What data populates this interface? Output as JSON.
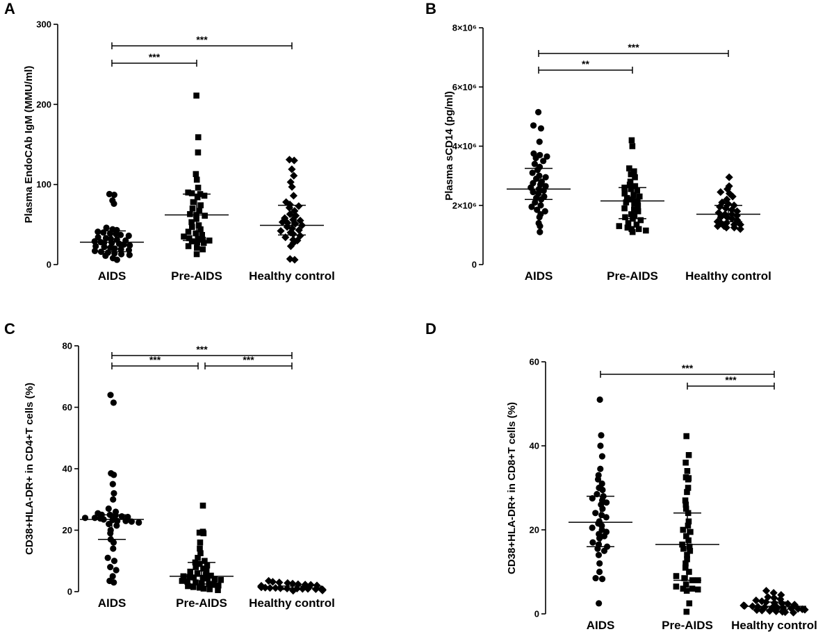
{
  "chart_data": [
    {
      "panel": "A",
      "type": "scatter",
      "ylabel": "Plasma EndoCAb IgM (MMU/ml)",
      "ylim": [
        0,
        300
      ],
      "yticks": [
        {
          "value": 0,
          "label": "0"
        },
        {
          "value": 100,
          "label": "100"
        },
        {
          "value": 200,
          "label": "200"
        },
        {
          "value": 300,
          "label": "300"
        }
      ],
      "categories": [
        "AIDS",
        "Pre-AIDS",
        "Healthy control"
      ],
      "series": [
        {
          "name": "AIDS",
          "marker": "circle",
          "median": 28,
          "iqr": [
            16,
            42
          ],
          "values": [
            88,
            87,
            80,
            76,
            46,
            44,
            43,
            41,
            40,
            39,
            38,
            37,
            36,
            34,
            33,
            32,
            31,
            30,
            29,
            28,
            27,
            27,
            26,
            25,
            24,
            23,
            22,
            21,
            20,
            19,
            18,
            17,
            16,
            15,
            14,
            13,
            12,
            11,
            8,
            6
          ]
        },
        {
          "name": "Pre-AIDS",
          "marker": "square",
          "median": 62,
          "iqr": [
            30,
            88
          ],
          "values": [
            211,
            159,
            140,
            113,
            106,
            96,
            90,
            89,
            88,
            86,
            84,
            78,
            74,
            70,
            67,
            63,
            62,
            61,
            57,
            53,
            49,
            47,
            44,
            41,
            39,
            37,
            35,
            33,
            32,
            31,
            30,
            29,
            28,
            27,
            23,
            21,
            19,
            13
          ]
        },
        {
          "name": "Healthy control",
          "marker": "diamond",
          "median": 49,
          "iqr": [
            37,
            74
          ],
          "values": [
            131,
            130,
            119,
            111,
            103,
            97,
            86,
            78,
            75,
            73,
            71,
            67,
            63,
            61,
            58,
            56,
            55,
            53,
            52,
            51,
            49,
            47,
            45,
            43,
            42,
            40,
            38,
            36,
            34,
            31,
            30,
            27,
            23,
            7,
            6
          ]
        }
      ],
      "comparisons": [
        {
          "from": 0,
          "to": 1,
          "label": "***"
        },
        {
          "from": 0,
          "to": 2,
          "label": "***"
        }
      ]
    },
    {
      "panel": "B",
      "type": "scatter",
      "ylabel": "Plasma sCD14 (pg/ml)",
      "ylim": [
        0,
        8000000
      ],
      "yticks": [
        {
          "value": 0,
          "label": "0"
        },
        {
          "value": 2000000,
          "label": "2×10⁶"
        },
        {
          "value": 4000000,
          "label": "4×10⁶"
        },
        {
          "value": 6000000,
          "label": "6×10⁶"
        },
        {
          "value": 8000000,
          "label": "8×10⁶"
        }
      ],
      "categories": [
        "AIDS",
        "Pre-AIDS",
        "Healthy control"
      ],
      "series": [
        {
          "name": "AIDS",
          "marker": "circle",
          "median": 2550000,
          "iqr": [
            2200000,
            3250000
          ],
          "values": [
            5150000,
            4700000,
            4600000,
            4150000,
            3750000,
            3700000,
            3650000,
            3600000,
            3500000,
            3400000,
            3300000,
            3200000,
            3100000,
            3000000,
            2950000,
            2900000,
            2800000,
            2750000,
            2700000,
            2650000,
            2600000,
            2550000,
            2500000,
            2450000,
            2400000,
            2300000,
            2250000,
            2200000,
            2100000,
            2000000,
            1950000,
            1850000,
            1800000,
            1700000,
            1600000,
            1400000,
            1300000,
            1100000
          ]
        },
        {
          "name": "Pre-AIDS",
          "marker": "square",
          "median": 2150000,
          "iqr": [
            1550000,
            2600000
          ],
          "values": [
            4200000,
            4000000,
            3250000,
            3150000,
            3050000,
            2950000,
            2800000,
            2700000,
            2650000,
            2600000,
            2550000,
            2500000,
            2400000,
            2350000,
            2300000,
            2250000,
            2200000,
            2150000,
            2100000,
            2050000,
            2000000,
            1900000,
            1850000,
            1800000,
            1700000,
            1650000,
            1600000,
            1550000,
            1500000,
            1400000,
            1350000,
            1300000,
            1250000,
            1200000,
            1200000,
            1150000,
            1100000
          ]
        },
        {
          "name": "Healthy control",
          "marker": "diamond",
          "median": 1700000,
          "iqr": [
            1450000,
            2000000
          ],
          "values": [
            2950000,
            2650000,
            2550000,
            2450000,
            2400000,
            2300000,
            2200000,
            2100000,
            2050000,
            2000000,
            1950000,
            1900000,
            1850000,
            1800000,
            1750000,
            1700000,
            1700000,
            1650000,
            1600000,
            1600000,
            1550000,
            1500000,
            1450000,
            1400000,
            1400000,
            1350000,
            1350000,
            1300000,
            1300000,
            1250000,
            1250000,
            1200000
          ]
        }
      ],
      "comparisons": [
        {
          "from": 0,
          "to": 1,
          "label": "**"
        },
        {
          "from": 0,
          "to": 2,
          "label": "***"
        }
      ]
    },
    {
      "panel": "C",
      "type": "scatter",
      "ylabel": "CD38+HLA-DR+ in CD4+T cells (%)",
      "ylim": [
        0,
        80
      ],
      "yticks": [
        {
          "value": 0,
          "label": "0"
        },
        {
          "value": 20,
          "label": "20"
        },
        {
          "value": 40,
          "label": "40"
        },
        {
          "value": 60,
          "label": "60"
        },
        {
          "value": 80,
          "label": "80"
        }
      ],
      "categories": [
        "AIDS",
        "Pre-AIDS",
        "Healthy control"
      ],
      "series": [
        {
          "name": "AIDS",
          "marker": "circle",
          "median": 23.5,
          "iqr": [
            17,
            25
          ],
          "values": [
            64,
            61.5,
            38.5,
            38,
            35,
            32,
            30,
            27,
            26,
            25.5,
            25,
            25,
            24.8,
            24.5,
            24.3,
            24,
            24,
            23.8,
            23.5,
            23.3,
            23,
            23,
            22.8,
            22.5,
            22,
            21.5,
            20,
            19,
            17,
            16,
            14,
            11,
            10,
            8,
            7,
            5,
            3.5,
            3
          ]
        },
        {
          "name": "Pre-AIDS",
          "marker": "square",
          "median": 5,
          "iqr": [
            2.5,
            9.5
          ],
          "values": [
            28,
            19.5,
            19.2,
            19,
            16,
            14,
            12.5,
            11,
            10,
            9.5,
            9,
            8.5,
            8,
            7.5,
            7,
            6.5,
            6,
            5.5,
            5.2,
            5,
            4.8,
            4.6,
            4.5,
            4.3,
            4,
            3.8,
            3.5,
            3.2,
            3,
            2.8,
            2.5,
            2.2,
            2,
            1.8,
            1.5,
            1.3,
            1,
            0.8,
            0.5
          ]
        },
        {
          "name": "Healthy control",
          "marker": "diamond",
          "median": 1.2,
          "iqr": [
            0.7,
            1.8
          ],
          "values": [
            3.5,
            3.2,
            3,
            2.8,
            2.6,
            2.4,
            2.3,
            2.2,
            2,
            1.9,
            1.8,
            1.7,
            1.6,
            1.5,
            1.4,
            1.3,
            1.2,
            1.2,
            1.1,
            1,
            1,
            0.9,
            0.9,
            0.8,
            0.8,
            0.7,
            0.7,
            0.6,
            0.5,
            0.5,
            0.4,
            0.3
          ]
        }
      ],
      "comparisons": [
        {
          "from": 0,
          "to": 1,
          "label": "***"
        },
        {
          "from": 1,
          "to": 2,
          "label": "***"
        },
        {
          "from": 0,
          "to": 2,
          "label": "***"
        }
      ]
    },
    {
      "panel": "D",
      "type": "scatter",
      "ylabel": "CD38+HLA-DR+ in CD8+T cells (%)",
      "ylim": [
        0,
        60
      ],
      "yticks": [
        {
          "value": 0,
          "label": "0"
        },
        {
          "value": 20,
          "label": "20"
        },
        {
          "value": 40,
          "label": "40"
        },
        {
          "value": 60,
          "label": "60"
        }
      ],
      "categories": [
        "AIDS",
        "Pre-AIDS",
        "Healthy control"
      ],
      "series": [
        {
          "name": "AIDS",
          "marker": "circle",
          "median": 21.8,
          "iqr": [
            16,
            28
          ],
          "values": [
            51,
            42.5,
            40,
            37.5,
            34.5,
            33,
            32,
            31,
            30,
            29.5,
            28.5,
            28,
            27.5,
            27,
            26.5,
            26,
            25,
            24,
            23.5,
            23,
            22,
            21.5,
            21,
            20.5,
            20,
            19.5,
            19,
            18.5,
            18,
            17,
            16.5,
            16,
            15.5,
            15,
            14,
            12,
            10,
            8.5,
            8.3,
            2.5
          ]
        },
        {
          "name": "Pre-AIDS",
          "marker": "square",
          "median": 16.5,
          "iqr": [
            8,
            24
          ],
          "values": [
            42.3,
            37.8,
            36,
            34,
            32.5,
            32.3,
            32,
            30,
            29,
            27,
            26,
            25,
            24,
            22,
            21,
            20,
            19.5,
            18.5,
            17.5,
            16.5,
            16,
            15.5,
            15,
            14,
            13,
            12,
            11,
            10,
            9,
            8.5,
            8,
            8,
            7,
            6.5,
            6,
            6,
            5.8,
            5.5,
            2.5,
            0.5
          ]
        },
        {
          "name": "Healthy control",
          "marker": "diamond",
          "median": 1.8,
          "iqr": [
            1,
            2.8
          ],
          "values": [
            5.5,
            5,
            4.5,
            4,
            3.8,
            3.5,
            3.2,
            3,
            2.8,
            2.6,
            2.5,
            2.4,
            2.2,
            2,
            2,
            1.9,
            1.8,
            1.7,
            1.6,
            1.5,
            1.5,
            1.4,
            1.3,
            1.2,
            1.1,
            1,
            1,
            0.9,
            0.8,
            0.7,
            0.6,
            0.5,
            0.4,
            0.3
          ]
        }
      ],
      "comparisons": [
        {
          "from": 1,
          "to": 2,
          "label": "***"
        },
        {
          "from": 0,
          "to": 2,
          "label": "***"
        }
      ]
    }
  ]
}
